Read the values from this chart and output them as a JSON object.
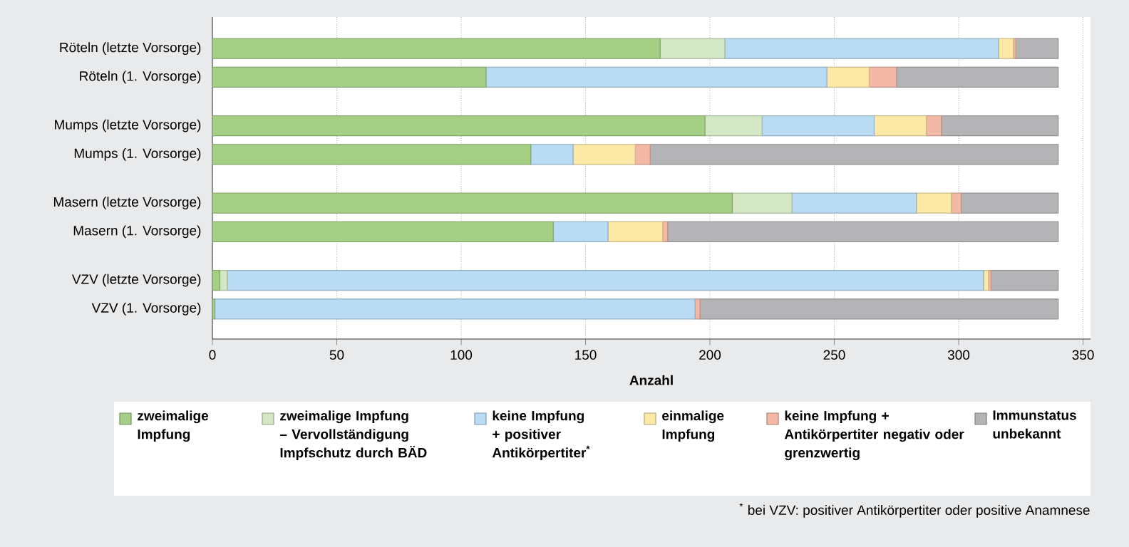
{
  "chart_data": {
    "type": "bar",
    "orientation": "horizontal",
    "stacked": true,
    "categories": [
      "Röteln (letzte Vorsorge)",
      "Röteln (1. Vorsorge)",
      "Mumps (letzte Vorsorge)",
      "Mumps (1. Vorsorge)",
      "Masern (letzte Vorsorge)",
      "Masern (1. Vorsorge)",
      "VZV (letzte Vorsorge)",
      "VZV (1. Vorsorge)"
    ],
    "series": [
      {
        "name": "zweimalige Impfung",
        "color": "#a6cf86",
        "values": [
          180,
          110,
          198,
          128,
          209,
          137,
          3,
          1
        ]
      },
      {
        "name": "zweimalige Impfung – Vervollständigung Impfschutz durch BÄD",
        "color": "#d3e7c4",
        "values": [
          26,
          0,
          23,
          0,
          24,
          0,
          3,
          0
        ]
      },
      {
        "name": "keine Impfung + positiver Antikörpertiter$^{*}$",
        "color": "#b9dcf4",
        "values": [
          110,
          137,
          45,
          17,
          50,
          22,
          304,
          193
        ]
      },
      {
        "name": "einmalige Impfung",
        "color": "#fde9a6",
        "values": [
          6,
          17,
          21,
          25,
          14,
          22,
          2,
          0
        ]
      },
      {
        "name": "keine Impfung + Antikörpertiter negativ oder grenzwertig",
        "color": "#f3b9a6",
        "values": [
          1,
          11,
          6,
          6,
          4,
          2,
          1,
          2
        ]
      },
      {
        "name": "Immunstatus unbekannt",
        "color": "#b4b4b6",
        "values": [
          17,
          65,
          47,
          164,
          39,
          157,
          27,
          144
        ]
      }
    ],
    "xlabel": "Anzahl",
    "xlim": [
      0,
      353
    ],
    "xticks": [
      0,
      50,
      100,
      150,
      200,
      250,
      300,
      350
    ],
    "grid": "x",
    "legend": "bottom",
    "annotations": [
      "$^{*}$ bei VZV: positiver Antikörpertiter oder positive Anamnese"
    ]
  }
}
